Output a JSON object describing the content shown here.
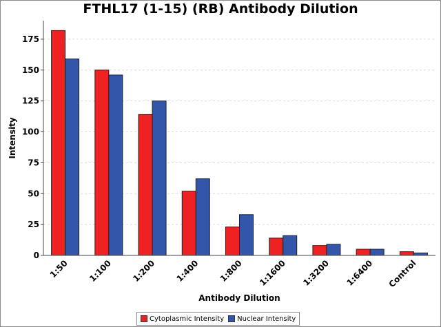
{
  "chart_data": {
    "type": "bar",
    "title": "FTHL17 (1-15) (RB) Antibody Dilution",
    "xlabel": "Antibody Dilution",
    "ylabel": "Intensity",
    "categories": [
      "1:50",
      "1:100",
      "1:200",
      "1:400",
      "1:800",
      "1:1600",
      "1:3200",
      "1:6400",
      "Control"
    ],
    "series": [
      {
        "name": "Cytoplasmic Intensity",
        "color": "#ee2222",
        "values": [
          182,
          150,
          114,
          52,
          23,
          14,
          8,
          5,
          3
        ]
      },
      {
        "name": "Nuclear Intensity",
        "color": "#3355aa",
        "values": [
          159,
          146,
          125,
          62,
          33,
          16,
          9,
          5,
          2
        ]
      }
    ],
    "ylim": [
      0,
      190
    ],
    "yticks": [
      0,
      25,
      50,
      75,
      100,
      125,
      150,
      175
    ],
    "grid": true,
    "legend": "bottom"
  }
}
